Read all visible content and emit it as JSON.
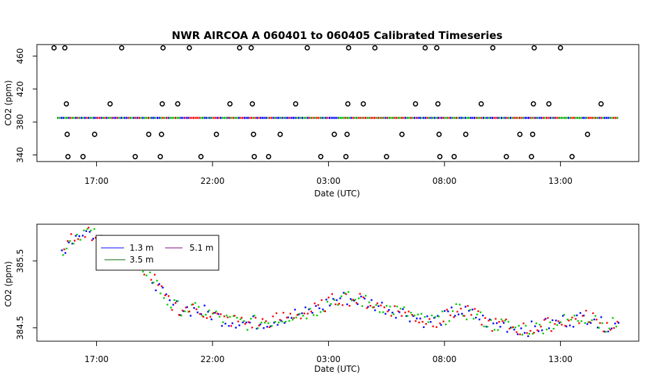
{
  "chart_data": [
    {
      "type": "scatter",
      "title": "NWR   AIRCOA  A   060401  to  060405   Calibrated Timeseries",
      "xlabel": "Date (UTC)",
      "ylabel": "CO2 (ppm)",
      "x_ticks": [
        "17:00",
        "22:00",
        "03:00",
        "08:00",
        "13:00"
      ],
      "y_ticks": [
        "340",
        "380",
        "420",
        "460"
      ],
      "ylim": [
        332,
        474
      ],
      "baseline_ppm": 385,
      "calibration_points": [
        {
          "t": "15:38",
          "co2": 470
        },
        {
          "t": "15:42",
          "co2": 402
        },
        {
          "t": "15:44",
          "co2": 365
        },
        {
          "t": "15:46",
          "co2": 338
        },
        {
          "t": "16:25",
          "co2": 338
        },
        {
          "t": "16:55",
          "co2": 365
        },
        {
          "t": "17:35",
          "co2": 402
        },
        {
          "t": "18:05",
          "co2": 470
        },
        {
          "t": "18:40",
          "co2": 338
        },
        {
          "t": "19:15",
          "co2": 365
        },
        {
          "t": "19:45",
          "co2": 338
        },
        {
          "t": "19:48",
          "co2": 365
        },
        {
          "t": "19:50",
          "co2": 402
        },
        {
          "t": "19:52",
          "co2": 470
        },
        {
          "t": "20:30",
          "co2": 402
        },
        {
          "t": "21:00",
          "co2": 470
        },
        {
          "t": "21:30",
          "co2": 338
        },
        {
          "t": "22:10",
          "co2": 365
        },
        {
          "t": "22:45",
          "co2": 402
        },
        {
          "t": "23:10",
          "co2": 470
        },
        {
          "t": "23:40",
          "co2": 470
        },
        {
          "t": "23:43",
          "co2": 402
        },
        {
          "t": "23:46",
          "co2": 365
        },
        {
          "t": "23:48",
          "co2": 338
        },
        {
          "t": "00:25",
          "co2": 338
        },
        {
          "t": "00:55",
          "co2": 365
        },
        {
          "t": "01:35",
          "co2": 402
        },
        {
          "t": "02:05",
          "co2": 470
        },
        {
          "t": "02:40",
          "co2": 338
        },
        {
          "t": "03:15",
          "co2": 365
        },
        {
          "t": "03:45",
          "co2": 338
        },
        {
          "t": "03:48",
          "co2": 365
        },
        {
          "t": "03:50",
          "co2": 402
        },
        {
          "t": "03:52",
          "co2": 470
        },
        {
          "t": "04:30",
          "co2": 402
        },
        {
          "t": "05:00",
          "co2": 470
        },
        {
          "t": "05:30",
          "co2": 338
        },
        {
          "t": "06:10",
          "co2": 365
        },
        {
          "t": "06:45",
          "co2": 402
        },
        {
          "t": "07:10",
          "co2": 470
        },
        {
          "t": "07:40",
          "co2": 470
        },
        {
          "t": "07:43",
          "co2": 402
        },
        {
          "t": "07:46",
          "co2": 365
        },
        {
          "t": "07:48",
          "co2": 338
        },
        {
          "t": "08:25",
          "co2": 338
        },
        {
          "t": "08:55",
          "co2": 365
        },
        {
          "t": "09:35",
          "co2": 402
        },
        {
          "t": "10:05",
          "co2": 470
        },
        {
          "t": "10:40",
          "co2": 338
        },
        {
          "t": "11:15",
          "co2": 365
        },
        {
          "t": "11:45",
          "co2": 338
        },
        {
          "t": "11:48",
          "co2": 365
        },
        {
          "t": "11:50",
          "co2": 402
        },
        {
          "t": "11:52",
          "co2": 470
        },
        {
          "t": "12:30",
          "co2": 402
        },
        {
          "t": "13:00",
          "co2": 470
        },
        {
          "t": "13:30",
          "co2": 338
        },
        {
          "t": "14:10",
          "co2": 365
        },
        {
          "t": "14:45",
          "co2": 402
        },
        {
          "t": "15:10",
          "co2": 470
        }
      ]
    },
    {
      "type": "scatter",
      "title": "",
      "xlabel": "Date (UTC)",
      "ylabel": "CO2 (ppm)",
      "x_ticks": [
        "17:00",
        "22:00",
        "03:00",
        "08:00",
        "13:00"
      ],
      "y_ticks": [
        "384.5",
        "385.5"
      ],
      "ylim": [
        384.3,
        386.05
      ],
      "legend_position": "top-left",
      "legend": [
        {
          "label": "1.3 m",
          "color": "#0000ff"
        },
        {
          "label": "5.1 m",
          "color": "#ff0000"
        },
        {
          "label": "3.5 m",
          "color": "#00cc00"
        }
      ],
      "series": [
        {
          "name": "1.3 m",
          "color": "#0000ff"
        },
        {
          "name": "3.5 m",
          "color": "#00cc00"
        },
        {
          "name": "5.1 m",
          "color": "#ff0000"
        }
      ],
      "trend": {
        "times": [
          "15:30",
          "15:50",
          "16:10",
          "16:30",
          "16:50",
          "17:10",
          "17:30",
          "17:50",
          "18:10",
          "18:30",
          "18:50",
          "19:10",
          "19:30",
          "19:50",
          "20:10",
          "20:30",
          "21:00",
          "21:30",
          "22:00",
          "22:30",
          "23:00",
          "23:30",
          "00:00",
          "00:30",
          "01:00",
          "01:30",
          "02:00",
          "02:30",
          "03:00",
          "03:30",
          "04:00",
          "04:30",
          "05:00",
          "05:30",
          "06:00",
          "06:30",
          "07:00",
          "07:30",
          "08:00",
          "08:30",
          "09:00",
          "09:30",
          "10:00",
          "10:30",
          "11:00",
          "11:30",
          "12:00",
          "12:30",
          "13:00",
          "13:30",
          "14:00",
          "14:30",
          "15:00",
          "15:30"
        ],
        "values": [
          385.65,
          385.8,
          385.9,
          385.95,
          385.9,
          385.8,
          385.75,
          385.7,
          385.55,
          385.5,
          385.45,
          385.35,
          385.2,
          385.0,
          384.85,
          384.8,
          384.78,
          384.75,
          384.7,
          384.62,
          384.6,
          384.57,
          384.58,
          384.6,
          384.65,
          384.7,
          384.72,
          384.78,
          384.88,
          384.95,
          384.93,
          384.9,
          384.85,
          384.8,
          384.75,
          384.7,
          384.62,
          384.6,
          384.65,
          384.75,
          384.72,
          384.65,
          384.55,
          384.55,
          384.5,
          384.48,
          384.5,
          384.55,
          384.6,
          384.62,
          384.65,
          384.7,
          384.65,
          384.55
        ]
      }
    }
  ]
}
